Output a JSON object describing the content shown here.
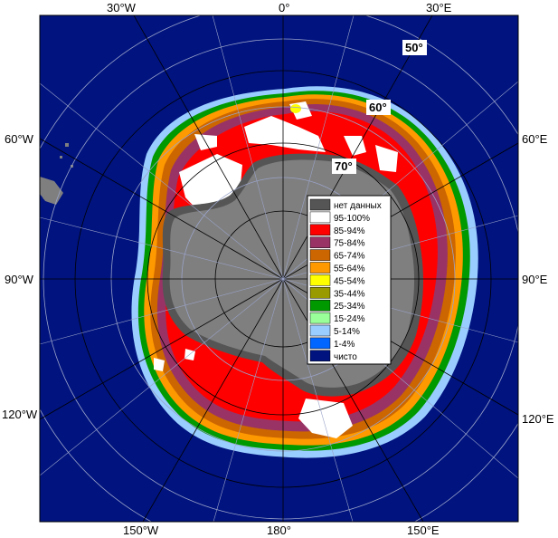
{
  "colors": {
    "ocean": "#00137f",
    "land": "#7f7f7f",
    "no_data": "#555555",
    "graticule": "#9aa3c8"
  },
  "longitude_labels": {
    "top": [
      "30°W",
      "0°",
      "30°E"
    ],
    "bottom": [
      "150°W",
      "180°",
      "150°E"
    ],
    "left": [
      "60°W",
      "90°W",
      "120°W"
    ],
    "right": [
      "60°E",
      "90°E",
      "120°E"
    ]
  },
  "latitude_labels": [
    "50°",
    "60°",
    "70°"
  ],
  "legend": {
    "items": [
      {
        "label": "нет данных",
        "color": "#555555"
      },
      {
        "label": "95-100%",
        "color": "#ffffff"
      },
      {
        "label": "85-94%",
        "color": "#ff0000"
      },
      {
        "label": "75-84%",
        "color": "#993366"
      },
      {
        "label": "65-74%",
        "color": "#cc6600"
      },
      {
        "label": "55-64%",
        "color": "#ff9900"
      },
      {
        "label": "45-54%",
        "color": "#ffff00"
      },
      {
        "label": "35-44%",
        "color": "#999900"
      },
      {
        "label": "25-34%",
        "color": "#009900"
      },
      {
        "label": "15-24%",
        "color": "#99ff99"
      },
      {
        "label": "5-14%",
        "color": "#99ccff"
      },
      {
        "label": "1-4%",
        "color": "#0066ff"
      },
      {
        "label": "чисто",
        "color": "#00137f"
      }
    ]
  }
}
